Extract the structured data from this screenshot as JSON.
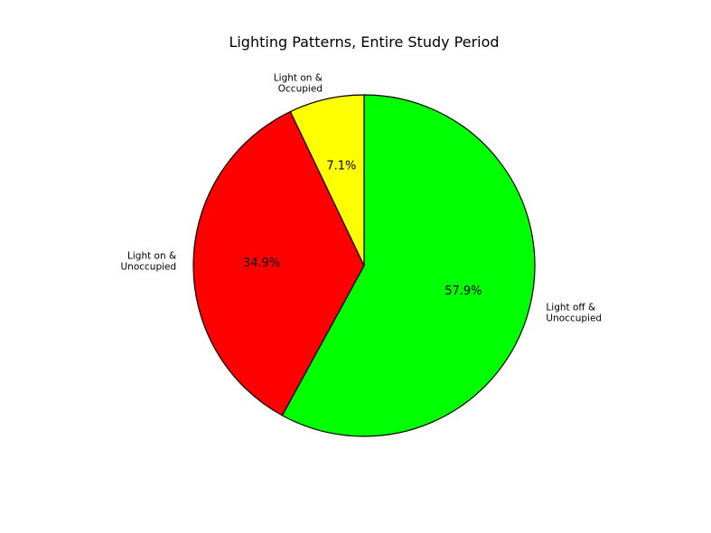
{
  "chart_data": {
    "type": "pie",
    "title": "Lighting Patterns, Entire Study Period",
    "start_angle_deg": 90,
    "direction": "clockwise",
    "slices": [
      {
        "label": "Light off & Unoccupied",
        "lines": [
          "Light off &",
          "Unoccupied"
        ],
        "value": 57.9,
        "pct_label": "57.9%",
        "color": "#00ff00"
      },
      {
        "label": "Light on & Unoccupied",
        "lines": [
          "Light on &",
          "Unoccupied"
        ],
        "value": 34.9,
        "pct_label": "34.9%",
        "color": "#ff0000"
      },
      {
        "label": "Light on & Occupied",
        "lines": [
          "Light on &",
          "Occupied"
        ],
        "value": 7.1,
        "pct_label": "7.1%",
        "color": "#ffff00"
      }
    ]
  }
}
